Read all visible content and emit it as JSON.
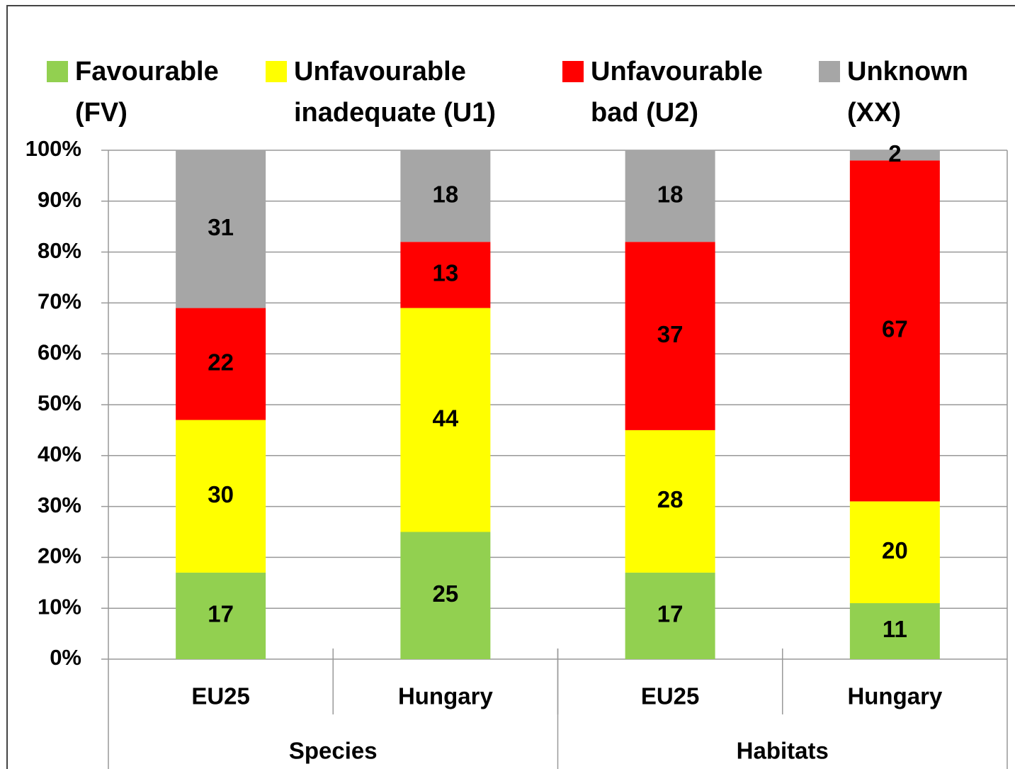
{
  "chart_data": {
    "type": "stacked_bar",
    "categories": [
      "EU25",
      "Hungary",
      "EU25",
      "Hungary"
    ],
    "category_groups": [
      "Species",
      "Habitats"
    ],
    "series": [
      {
        "name": "Favourable (FV)",
        "color": "#92d050",
        "values": [
          17,
          25,
          17,
          11
        ]
      },
      {
        "name": "Unfavourable inadequate (U1)",
        "color": "#ffff00",
        "values": [
          30,
          44,
          28,
          20
        ]
      },
      {
        "name": "Unfavourable bad (U2)",
        "color": "#ff0000",
        "values": [
          22,
          13,
          37,
          67
        ]
      },
      {
        "name": "Unknown (XX)",
        "color": "#a6a6a6",
        "values": [
          31,
          18,
          18,
          2
        ]
      }
    ],
    "ylim": [
      0,
      100
    ],
    "yticks": [
      {
        "value": 0,
        "label": "0%"
      },
      {
        "value": 10,
        "label": "10%"
      },
      {
        "value": 20,
        "label": "20%"
      },
      {
        "value": 30,
        "label": "30%"
      },
      {
        "value": 40,
        "label": "40%"
      },
      {
        "value": 50,
        "label": "50%"
      },
      {
        "value": 60,
        "label": "60%"
      },
      {
        "value": 70,
        "label": "70%"
      },
      {
        "value": 80,
        "label": "80%"
      },
      {
        "value": 90,
        "label": "90%"
      },
      {
        "value": 100,
        "label": "100%"
      }
    ],
    "grid": true,
    "legend": "top"
  }
}
